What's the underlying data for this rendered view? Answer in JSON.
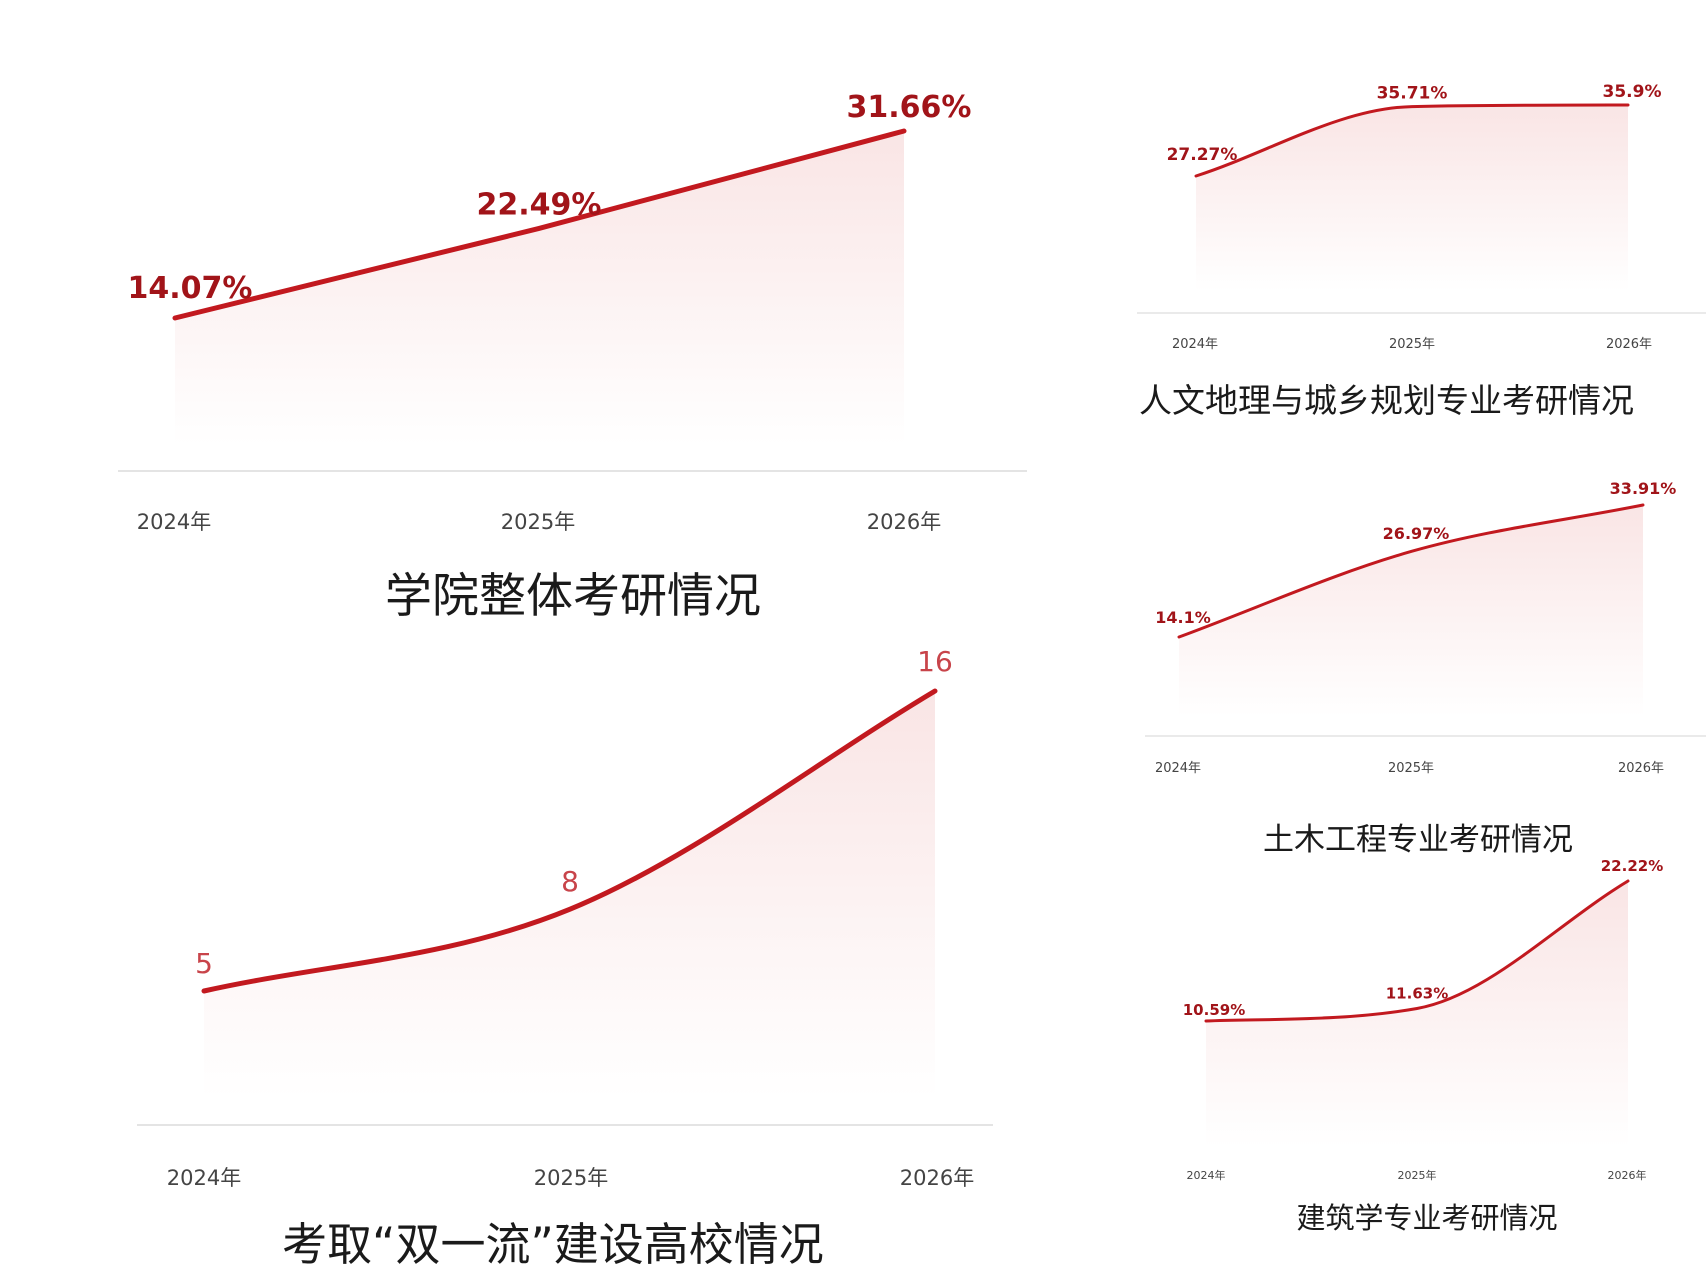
{
  "colors": {
    "line": "#c2191f",
    "label": "#a11419",
    "count_label": "#c8444a",
    "baseline": "#e4e4e4",
    "fill": "#f7dcdc"
  },
  "chart_data": [
    {
      "id": "overall",
      "type": "area",
      "title": "学院整体考研情况",
      "categories": [
        "2024年",
        "2025年",
        "2026年"
      ],
      "values": [
        14.07,
        22.49,
        31.66
      ],
      "value_labels": [
        "14.07%",
        "22.49%",
        "31.66%"
      ],
      "curve": "straight",
      "grid": false
    },
    {
      "id": "double-first-class",
      "type": "area",
      "title": "考取“双一流”建设高校情况",
      "categories": [
        "2024年",
        "2025年",
        "2026年"
      ],
      "values": [
        5,
        8,
        16
      ],
      "value_labels": [
        "5",
        "8",
        "16"
      ],
      "curve": "smooth",
      "grid": false
    },
    {
      "id": "human-geography",
      "type": "area",
      "title": "人文地理与城乡规划专业考研情况",
      "categories": [
        "2024年",
        "2025年",
        "2026年"
      ],
      "values": [
        27.27,
        35.71,
        35.9
      ],
      "value_labels": [
        "27.27%",
        "35.71%",
        "35.9%"
      ],
      "curve": "smooth",
      "grid": false
    },
    {
      "id": "civil-engineering",
      "type": "area",
      "title": "土木工程专业考研情况",
      "categories": [
        "2024年",
        "2025年",
        "2026年"
      ],
      "values": [
        14.1,
        26.97,
        33.91
      ],
      "value_labels": [
        "14.1%",
        "26.97%",
        "33.91%"
      ],
      "curve": "smooth",
      "grid": false
    },
    {
      "id": "architecture",
      "type": "area",
      "title": "建筑学专业考研情况",
      "categories": [
        "2024年",
        "2025年",
        "2026年"
      ],
      "values": [
        10.59,
        11.63,
        22.22
      ],
      "value_labels": [
        "10.59%",
        "11.63%",
        "22.22%"
      ],
      "curve": "smooth",
      "grid": false
    }
  ]
}
